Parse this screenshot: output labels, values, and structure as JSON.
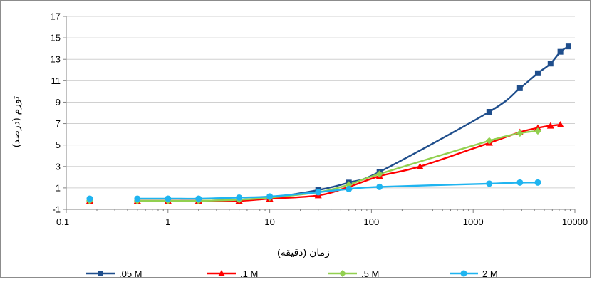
{
  "chart_data": {
    "type": "line",
    "x_scale": "log",
    "xlim": [
      0.1,
      10000
    ],
    "ylim": [
      -1,
      17
    ],
    "x_ticks": [
      0.1,
      1,
      10,
      100,
      1000,
      10000
    ],
    "x_tick_labels": [
      "0.1",
      "1",
      "10",
      "100",
      "1000",
      "10000"
    ],
    "y_ticks": [
      -1,
      1,
      3,
      5,
      7,
      9,
      11,
      13,
      15,
      17
    ],
    "y_tick_labels": [
      "-1",
      "1",
      "3",
      "5",
      "7",
      "9",
      "11",
      "13",
      "15",
      "17"
    ],
    "xlabel": "زمان (دقیقه)",
    "ylabel": "تورم (درصد)",
    "grid": "horizontal",
    "legend_position": "bottom",
    "series": [
      {
        "name": ".05 M",
        "color": "#1f4e8c",
        "marker": "square",
        "x": [
          0.17,
          0.5,
          1,
          2,
          5,
          10,
          30,
          60,
          120,
          1440,
          2880,
          4320,
          5760,
          7200,
          8640
        ],
        "y": [
          -0.2,
          -0.2,
          -0.2,
          -0.2,
          -0.1,
          0.1,
          0.8,
          1.5,
          2.5,
          8.1,
          10.3,
          11.7,
          12.6,
          13.7,
          14.2
        ]
      },
      {
        "name": ".1 M",
        "color": "#ff0000",
        "marker": "triangle",
        "x": [
          0.17,
          0.5,
          1,
          2,
          5,
          10,
          30,
          60,
          120,
          300,
          1440,
          2880,
          4320,
          5760,
          7200
        ],
        "y": [
          -0.2,
          -0.2,
          -0.2,
          -0.2,
          -0.2,
          0,
          0.3,
          1.1,
          2.1,
          3,
          5.2,
          6.2,
          6.6,
          6.8,
          6.9
        ]
      },
      {
        "name": ".5 M",
        "color": "#92d050",
        "marker": "diamond",
        "x": [
          0.17,
          0.5,
          1,
          2,
          5,
          10,
          30,
          60,
          120,
          1440,
          2880,
          4320
        ],
        "y": [
          -0.2,
          -0.2,
          -0.2,
          -0.2,
          -0.1,
          0.1,
          0.6,
          1.3,
          2.3,
          5.4,
          6.1,
          6.3
        ]
      },
      {
        "name": "2 M",
        "color": "#1fb4f0",
        "marker": "circle",
        "x": [
          0.17,
          0.5,
          1,
          2,
          5,
          10,
          30,
          60,
          120,
          1440,
          2880,
          4320
        ],
        "y": [
          0,
          0,
          0,
          0,
          0.1,
          0.2,
          0.6,
          0.9,
          1.1,
          1.4,
          1.5,
          1.5
        ]
      }
    ]
  }
}
